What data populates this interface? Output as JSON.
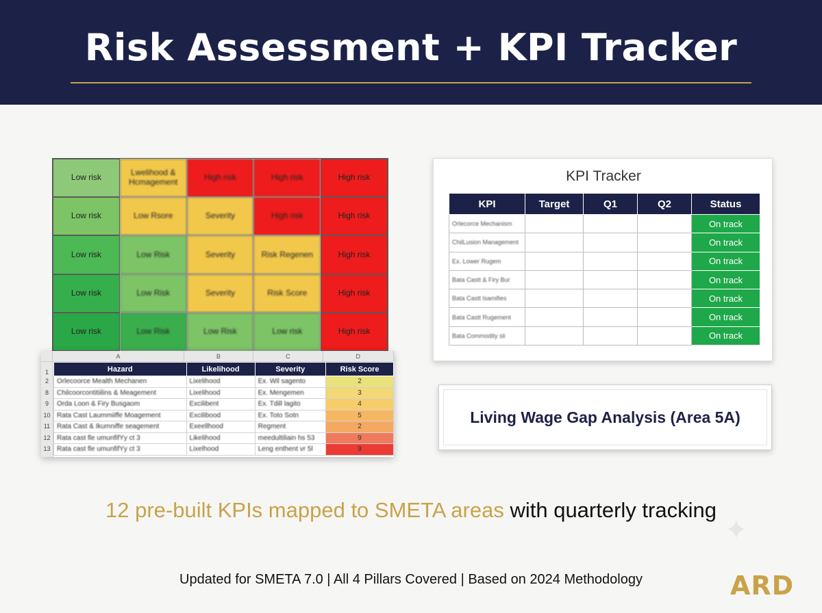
{
  "header": {
    "title": "Risk Assessment + KPI Tracker"
  },
  "colors": {
    "navy": "#1c2247",
    "gold": "#c9a24a",
    "green": "#1ea84a",
    "red": "#ee1c1c",
    "amber": "#f2c84b",
    "light_green": "#7dc668"
  },
  "risk_matrix": {
    "rows": [
      [
        {
          "text": "Low risk",
          "color": "#8ec97a",
          "blur": false
        },
        {
          "text": "Lwelihood & Hcmagement",
          "color": "#f2c84b",
          "blur": true
        },
        {
          "text": "High risk",
          "color": "#ee1c1c",
          "blur": true
        },
        {
          "text": "High risk",
          "color": "#ee1c1c",
          "blur": true
        },
        {
          "text": "High risk",
          "color": "#ee1c1c",
          "blur": false
        }
      ],
      [
        {
          "text": "Low risk",
          "color": "#7cc465",
          "blur": false
        },
        {
          "text": "Low Rsore",
          "color": "#f2c84b",
          "blur": true
        },
        {
          "text": "Severity",
          "color": "#f2c84b",
          "blur": true
        },
        {
          "text": "High risk",
          "color": "#ee1c1c",
          "blur": true
        },
        {
          "text": "High risk",
          "color": "#ee1c1c",
          "blur": false
        }
      ],
      [
        {
          "text": "Low risk",
          "color": "#4cb955",
          "blur": false
        },
        {
          "text": "Low Risk",
          "color": "#7cc465",
          "blur": true
        },
        {
          "text": "Severity",
          "color": "#f2c84b",
          "blur": true
        },
        {
          "text": "Risk Regenen",
          "color": "#f2c84b",
          "blur": true
        },
        {
          "text": "High risk",
          "color": "#ee1c1c",
          "blur": false
        }
      ],
      [
        {
          "text": "Low risk",
          "color": "#35af4c",
          "blur": false
        },
        {
          "text": "Low Risk",
          "color": "#7cc465",
          "blur": true
        },
        {
          "text": "Severity",
          "color": "#f2c84b",
          "blur": true
        },
        {
          "text": "Risk Score",
          "color": "#f2c84b",
          "blur": true
        },
        {
          "text": "High risk",
          "color": "#ee1c1c",
          "blur": false
        }
      ],
      [
        {
          "text": "Low risk",
          "color": "#2aa847",
          "blur": false
        },
        {
          "text": "Low Risk",
          "color": "#3aae4d",
          "blur": true
        },
        {
          "text": "Low Risk",
          "color": "#7cc465",
          "blur": true
        },
        {
          "text": "Low risk",
          "color": "#7cc465",
          "blur": true
        },
        {
          "text": "High risk",
          "color": "#ee1c1c",
          "blur": false
        }
      ]
    ]
  },
  "spreadsheet": {
    "col_letters": [
      "A",
      "B",
      "C",
      "D"
    ],
    "headers": [
      "Hazard",
      "Likelihood",
      "Severity",
      "Risk Score"
    ],
    "row_numbers": [
      "1",
      "2",
      "8",
      "9",
      "10",
      "11",
      "12",
      "13"
    ],
    "rows": [
      {
        "hazard": "Orlecoorce Mealth Mechanen",
        "likelihood": "Lixelihood",
        "severity": "Ex. Wil sagento",
        "score": "2",
        "score_color": "#e9e27a"
      },
      {
        "hazard": "Chilcoorcontitiilins & Meagement",
        "likelihood": "Lixelihood",
        "severity": "Ex. Mengemen",
        "score": "3",
        "score_color": "#f3d877"
      },
      {
        "hazard": "Orda Loon & Firy Busgaom",
        "likelihood": "Excilibent",
        "severity": "Ex. Tdill lagito",
        "score": "4",
        "score_color": "#f7cd6b"
      },
      {
        "hazard": "Rata Cast Laummiiffe Moagement",
        "likelihood": "Excilibood",
        "severity": "Ex. Toto Sotn",
        "score": "5",
        "score_color": "#f6b763"
      },
      {
        "hazard": "Rata Cast & Ikumniffe seagement",
        "likelihood": "Exeellhood",
        "severity": "Regment",
        "score": "2",
        "score_color": "#f4a963"
      },
      {
        "hazard": "Rata cast fle umunfifYy ct 3",
        "likelihood": "Likelihood",
        "severity": "meedultiliain hs 53",
        "score": "9",
        "score_color": "#f07a5e"
      },
      {
        "hazard": "Rata cast fle umunfifYy ct 3",
        "likelihood": "Lixelhood",
        "severity": "Leng enthent vr 5l",
        "score": "9",
        "score_color": "#ec3b34"
      }
    ]
  },
  "kpi_tracker": {
    "title": "KPI Tracker",
    "headers": [
      "KPI",
      "Target",
      "Q1",
      "Q2",
      "Status"
    ],
    "rows": [
      {
        "kpi": "Orlecorce Mechanism",
        "status": "On track"
      },
      {
        "kpi": "ChilLusion Management",
        "status": "On track"
      },
      {
        "kpi": "Ex. Lower Rugem",
        "status": "On track"
      },
      {
        "kpi": "Bata Castt & Firy Bur",
        "status": "On track"
      },
      {
        "kpi": "Bata Castt lsamifies",
        "status": "On track"
      },
      {
        "kpi": "Bata Castt Rugement",
        "status": "On track"
      },
      {
        "kpi": "Bata Commodity sli",
        "status": "On track"
      }
    ]
  },
  "living_wage": {
    "label": "Living Wage Gap Analysis (Area 5A)"
  },
  "tagline": {
    "highlight": "12 pre-built KPIs mapped to SMETA areas",
    "rest": " with quarterly tracking"
  },
  "footer": {
    "text": "Updated for SMETA 7.0 | All 4 Pillars Covered | Based on 2024 Methodology"
  },
  "logo": {
    "text": "ARD"
  },
  "icons": {
    "sparkle": "sparkle-icon"
  }
}
